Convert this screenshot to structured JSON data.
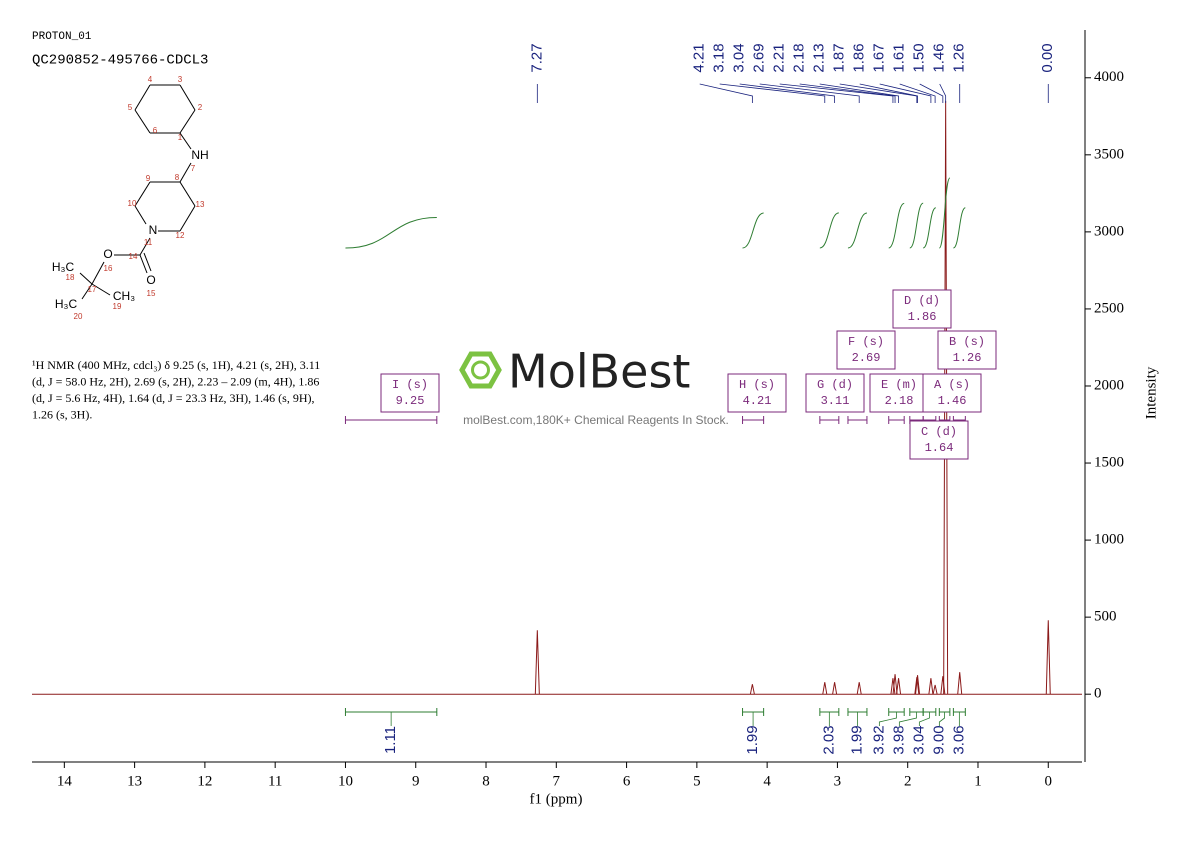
{
  "header": {
    "experiment": "PROTON_01",
    "sample": "QC290852-495766-CDCL3"
  },
  "structure": {
    "labels": [
      "4",
      "3",
      "2",
      "1",
      "6",
      "5",
      "NH",
      "7",
      "8",
      "9",
      "10",
      "N",
      "11",
      "12",
      "13",
      "O",
      "14",
      "O",
      "15",
      "16",
      "17",
      "H₃C",
      "18",
      "CH₃",
      "19",
      "H₃C",
      "20"
    ]
  },
  "description": [
    "¹H NMR (400 MHz, cdcl₃) δ 9.25 (s, 1H), 4.21 (s, 2H), 3.11",
    "(d, J = 58.0 Hz, 2H), 2.69 (s, 2H), 2.23 – 2.09 (m, 4H), 1.86",
    "(d, J = 5.6 Hz, 4H), 1.64 (d, J = 23.3 Hz, 3H), 1.46 (s, 9H),",
    "1.26 (s, 3H)."
  ],
  "watermark": {
    "brand": "MolBest",
    "tagline": "molBest.com,180K+ Chemical Reagents In Stock."
  },
  "chart_data": {
    "type": "nmr",
    "xlabel": "f1 (ppm)",
    "ylabel": "Intensity",
    "xlim": [
      14.46,
      -0.48
    ],
    "ylim": [
      -440,
      4310
    ],
    "xticks": [
      14,
      13,
      12,
      11,
      10,
      9,
      8,
      7,
      6,
      5,
      4,
      3,
      2,
      1,
      0
    ],
    "yticks": [
      0,
      500,
      1000,
      1500,
      2000,
      2500,
      3000,
      3500,
      4000
    ],
    "color": "#8b1a1a",
    "peaks": [
      {
        "shift": 7.27,
        "intensity": 415
      },
      {
        "shift": 4.21,
        "intensity": 65
      },
      {
        "shift": 3.18,
        "intensity": 78
      },
      {
        "shift": 3.04,
        "intensity": 78
      },
      {
        "shift": 2.69,
        "intensity": 78
      },
      {
        "shift": 2.21,
        "intensity": 104
      },
      {
        "shift": 2.18,
        "intensity": 130
      },
      {
        "shift": 2.13,
        "intensity": 104
      },
      {
        "shift": 1.87,
        "intensity": 110
      },
      {
        "shift": 1.86,
        "intensity": 123
      },
      {
        "shift": 1.67,
        "intensity": 104
      },
      {
        "shift": 1.61,
        "intensity": 60
      },
      {
        "shift": {
          "value": 1.5,
          "label": "1.50"
        },
        "intensity": 117
      },
      {
        "shift": 1.46,
        "intensity": 3850
      },
      {
        "shift": 1.26,
        "intensity": 143
      },
      {
        "shift": {
          "value": 0,
          "label": "0.00"
        },
        "intensity": 480
      }
    ],
    "integrals": [
      {
        "range": [
          10.0,
          8.7
        ],
        "value": 1.11
      },
      {
        "range": [
          4.35,
          4.05
        ],
        "value": 1.99
      },
      {
        "range": [
          3.25,
          2.98
        ],
        "value": 2.03
      },
      {
        "range": [
          2.85,
          2.58
        ],
        "value": 1.99
      },
      {
        "range": [
          2.27,
          2.05
        ],
        "value": 3.92
      },
      {
        "range": [
          1.97,
          1.78
        ],
        "value": 3.98
      },
      {
        "range": [
          1.78,
          1.6
        ],
        "value": 3.04
      },
      {
        "range": [
          1.55,
          1.4
        ],
        "value": {
          "value": 9,
          "label": "9.00"
        }
      },
      {
        "range": [
          1.35,
          1.18
        ],
        "value": 3.06
      }
    ],
    "multiplets": [
      {
        "label": "I (s)",
        "shift": 9.25,
        "range": [
          10.0,
          8.7
        ]
      },
      {
        "label": "H (s)",
        "shift": 4.21,
        "range": [
          4.35,
          4.05
        ]
      },
      {
        "label": "G (d)",
        "shift": 3.11,
        "range": [
          3.25,
          2.98
        ]
      },
      {
        "label": "F (s)",
        "shift": 2.69,
        "range": [
          2.85,
          2.58
        ]
      },
      {
        "label": "E (m)",
        "shift": 2.18,
        "range": [
          2.27,
          2.05
        ]
      },
      {
        "label": "D (d)",
        "shift": 1.86,
        "range": [
          1.97,
          1.78
        ]
      },
      {
        "label": "A (s)",
        "shift": 1.46,
        "range": [
          1.55,
          1.4
        ]
      },
      {
        "label": "B (s)",
        "shift": 1.26,
        "range": [
          1.35,
          1.18
        ]
      },
      {
        "label": "C (d)",
        "shift": 1.64,
        "range": [
          1.78,
          1.6
        ]
      }
    ]
  }
}
